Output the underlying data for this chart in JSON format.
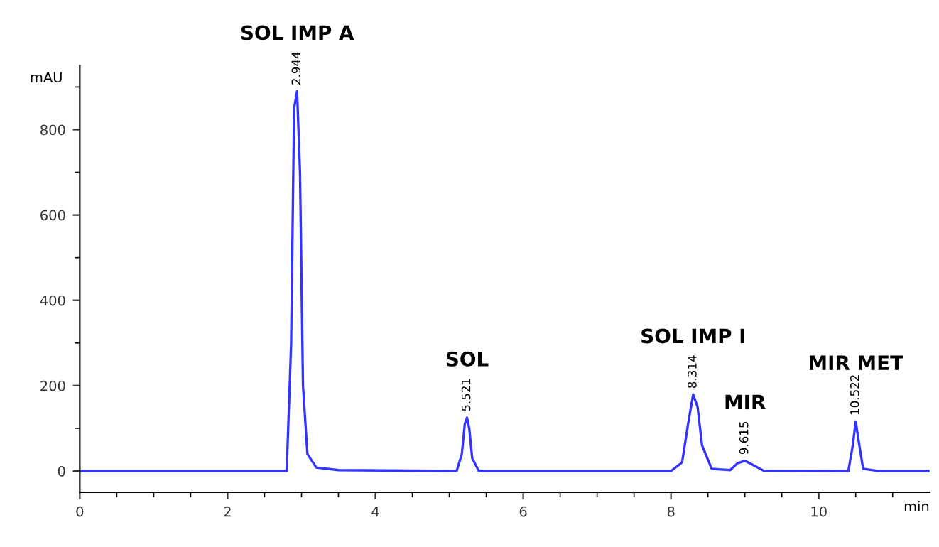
{
  "chart_data": {
    "type": "line",
    "xlabel": "min",
    "ylabel": "mAU",
    "x": [
      0,
      2.8,
      2.86,
      2.9,
      2.94,
      2.98,
      3.02,
      3.08,
      3.2,
      3.5,
      5.1,
      5.17,
      5.21,
      5.24,
      5.27,
      5.31,
      5.4,
      8.0,
      8.15,
      8.24,
      8.3,
      8.36,
      8.42,
      8.55,
      8.8,
      8.9,
      9.0,
      9.1,
      9.25,
      10.4,
      10.46,
      10.5,
      10.54,
      10.6,
      10.8,
      11.5
    ],
    "series": [
      {
        "color": "#3333ff",
        "values": [
          0,
          0,
          300,
          850,
          890,
          700,
          200,
          40,
          8,
          2,
          0,
          40,
          110,
          125,
          100,
          30,
          0,
          0,
          20,
          120,
          179,
          150,
          60,
          5,
          2,
          18,
          24,
          15,
          1,
          0,
          60,
          116,
          70,
          5,
          0,
          0
        ]
      }
    ],
    "xlim": [
      0,
      11.5
    ],
    "ylim": [
      -50,
      950
    ],
    "xticks": [
      0,
      {
        "value": 0.5,
        "label": null
      },
      {
        "value": 1,
        "label": null
      },
      {
        "value": 1.5,
        "label": null
      },
      2,
      {
        "value": 2.5,
        "label": null
      },
      {
        "value": 3,
        "label": null
      },
      {
        "value": 3.5,
        "label": null
      },
      4,
      {
        "value": 4.5,
        "label": null
      },
      {
        "value": 5,
        "label": null
      },
      {
        "value": 5.5,
        "label": null
      },
      6,
      {
        "value": 6.5,
        "label": null
      },
      {
        "value": 7,
        "label": null
      },
      {
        "value": 7.5,
        "label": null
      },
      8,
      {
        "value": 8.5,
        "label": null
      },
      {
        "value": 9,
        "label": null
      },
      {
        "value": 9.5,
        "label": null
      },
      10,
      {
        "value": 10.5,
        "label": null
      },
      {
        "value": 11,
        "label": null
      }
    ],
    "yticks": [
      0,
      {
        "value": 100,
        "label": null
      },
      200,
      {
        "value": 300,
        "label": null
      },
      400,
      {
        "value": 500,
        "label": null
      },
      600,
      {
        "value": 700,
        "label": null
      },
      800,
      {
        "value": 900,
        "label": null
      }
    ],
    "annotations": [
      {
        "text": "SOL IMP A",
        "x": 2.94,
        "y": 890
      },
      {
        "text": "2.944",
        "x": 2.94,
        "y": 890
      },
      {
        "text": "SOL",
        "x": 5.24,
        "y": 125
      },
      {
        "text": "5.521",
        "x": 5.24,
        "y": 125
      },
      {
        "text": "SOL IMP I",
        "x": 8.3,
        "y": 179
      },
      {
        "text": "8.314",
        "x": 8.3,
        "y": 179
      },
      {
        "text": "MIR",
        "x": 9.0,
        "y": 24
      },
      {
        "text": "9.615",
        "x": 9.0,
        "y": 24
      },
      {
        "text": "MIR MET",
        "x": 10.5,
        "y": 116
      },
      {
        "text": "10.522",
        "x": 10.5,
        "y": 116
      }
    ],
    "grid": false,
    "legend": false,
    "marker": "none",
    "line_style": "solid"
  }
}
